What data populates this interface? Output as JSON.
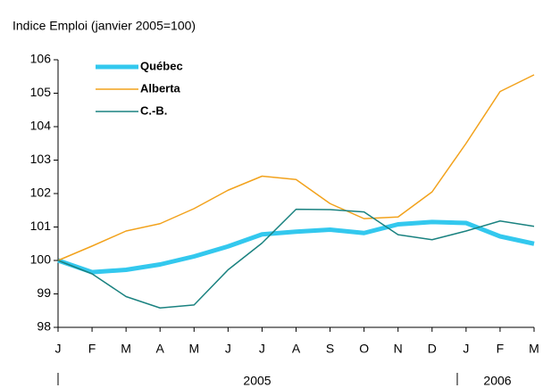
{
  "chart_data": {
    "type": "line",
    "title": "Indice Emploi (janvier 2005=100)",
    "categories": [
      "J",
      "F",
      "M",
      "A",
      "M",
      "J",
      "J",
      "A",
      "S",
      "O",
      "N",
      "D",
      "J",
      "F",
      "M"
    ],
    "year_labels": [
      "2005",
      "2006"
    ],
    "series": [
      {
        "name": "Québec",
        "color": "#33c8ee",
        "values": [
          100,
          99.65,
          99.72,
          99.88,
          100.12,
          100.42,
          100.78,
          100.86,
          100.92,
          100.82,
          101.08,
          101.15,
          101.12,
          100.72,
          100.5
        ]
      },
      {
        "name": "Alberta",
        "color": "#f2a21c",
        "values": [
          100,
          100.43,
          100.88,
          101.1,
          101.55,
          102.1,
          102.52,
          102.42,
          101.7,
          101.25,
          101.3,
          102.05,
          103.5,
          105.05,
          105.55
        ]
      },
      {
        "name": "C.-B.",
        "color": "#1a8280",
        "values": [
          100,
          99.6,
          98.92,
          98.58,
          98.67,
          99.72,
          100.52,
          101.53,
          101.52,
          101.45,
          100.77,
          100.62,
          100.88,
          101.18,
          101.02
        ]
      }
    ],
    "ylim": [
      98,
      106
    ],
    "yticks": [
      98,
      99,
      100,
      101,
      102,
      103,
      104,
      105,
      106
    ],
    "grid": false
  }
}
